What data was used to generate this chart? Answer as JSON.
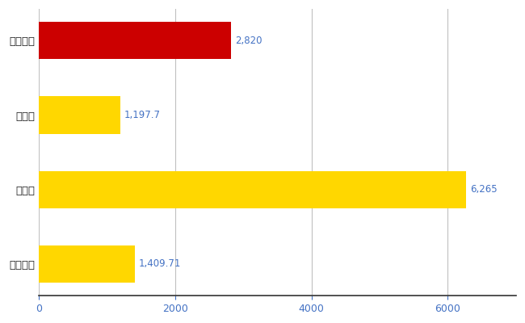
{
  "categories": [
    "全国平均",
    "県最大",
    "県平均",
    "新居浜市"
  ],
  "values": [
    1409.71,
    6265,
    1197.7,
    2820
  ],
  "colors": [
    "#FFD700",
    "#FFD700",
    "#FFD700",
    "#CC0000"
  ],
  "labels": [
    "1,409.71",
    "6,265",
    "1,197.7",
    "2,820"
  ],
  "xlim": [
    0,
    7000
  ],
  "xticks": [
    0,
    2000,
    4000,
    6000
  ],
  "background_color": "#FFFFFF",
  "grid_color": "#C0C0C0",
  "bar_label_color": "#4472C4",
  "tick_label_color": "#4472C4",
  "bar_height": 0.5,
  "figsize": [
    6.5,
    4.0
  ],
  "dpi": 100
}
